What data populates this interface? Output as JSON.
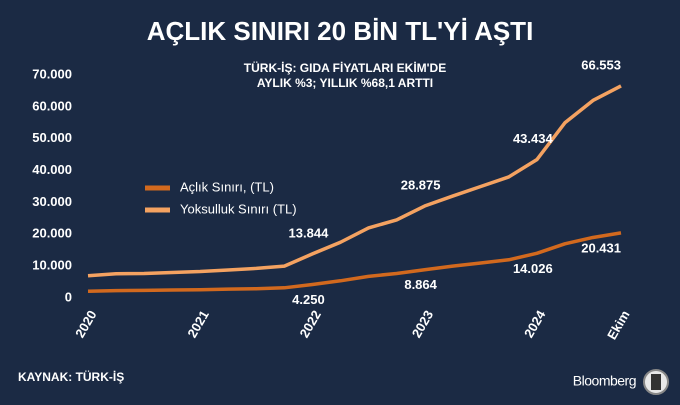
{
  "chart_data": {
    "type": "line",
    "title": "AÇLIK SINIRI 20 BİN TL'Yİ AŞTI",
    "subtitle": [
      "TÜRK-İŞ: GIDA FİYATLARI EKİM'DE",
      "AYLIK %3; YILLIK %68,1 ARTTI"
    ],
    "source": "KAYNAK: TÜRK-İŞ",
    "brand": "Bloomberg",
    "x": [
      2020,
      2020.25,
      2020.5,
      2020.75,
      2021,
      2021.25,
      2021.5,
      2021.75,
      2022,
      2022.25,
      2022.5,
      2022.75,
      2023,
      2023.25,
      2023.5,
      2023.75,
      2024,
      2024.25,
      2024.5,
      2024.75
    ],
    "series": [
      {
        "name": "Açlık Sınırı, (TL)",
        "color": "#d2691e",
        "values": [
          2100,
          2300,
          2400,
          2500,
          2600,
          2800,
          2900,
          3200,
          4250,
          5400,
          6800,
          7700,
          8864,
          10000,
          11000,
          12000,
          14026,
          17000,
          19000,
          20431
        ],
        "value_labels": [
          null,
          null,
          null,
          null,
          null,
          null,
          null,
          null,
          "4.250",
          null,
          null,
          null,
          "8.864",
          null,
          null,
          null,
          "14.026",
          null,
          null,
          "20.431"
        ]
      },
      {
        "name": "Yoksulluk Sınırı (TL)",
        "color": "#f4a261",
        "values": [
          7000,
          7600,
          7700,
          8000,
          8300,
          8800,
          9300,
          10000,
          13844,
          17500,
          22000,
          24500,
          28875,
          32000,
          35000,
          38000,
          43434,
          55000,
          62000,
          66553
        ],
        "value_labels": [
          null,
          null,
          null,
          null,
          null,
          null,
          null,
          null,
          "13.844",
          null,
          null,
          null,
          "28.875",
          null,
          null,
          null,
          "43.434",
          null,
          null,
          "66.553"
        ]
      }
    ],
    "xlim": [
      2020,
      2024.75
    ],
    "xticks": [
      2020,
      2021,
      2022,
      2023,
      2024,
      {
        "value": 2024.75,
        "label": "Ekim"
      }
    ],
    "ylim": [
      0,
      70000
    ],
    "yticks": [
      0,
      {
        "value": 10000,
        "label": "10.000"
      },
      {
        "value": 20000,
        "label": "20.000"
      },
      {
        "value": 30000,
        "label": "30.000"
      },
      {
        "value": 40000,
        "label": "40.000"
      },
      {
        "value": 50000,
        "label": "50.000"
      },
      {
        "value": 60000,
        "label": "60.000"
      },
      {
        "value": 70000,
        "label": "70.000"
      }
    ],
    "grid": false
  }
}
